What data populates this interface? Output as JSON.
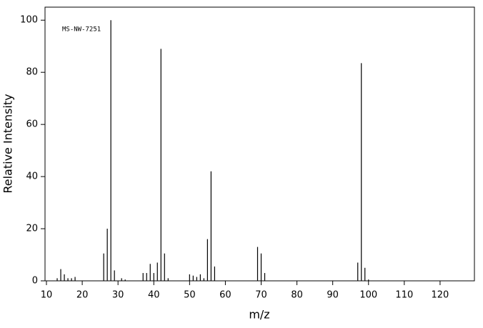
{
  "chart_data": {
    "type": "stick",
    "annotation": "MS-NW-7251",
    "x_label": "m/z",
    "y_label": "Relative Intensity",
    "x": [
      13,
      14,
      15,
      16,
      17,
      18,
      26,
      27,
      28,
      29,
      31,
      32,
      37,
      38,
      39,
      40,
      41,
      42,
      43,
      44,
      50,
      51,
      52,
      53,
      54,
      55,
      56,
      57,
      69,
      70,
      71,
      97,
      98,
      99,
      100
    ],
    "values": [
      1,
      4.5,
      2.5,
      1,
      1,
      1.5,
      10.5,
      20,
      100,
      4,
      1,
      0.5,
      3,
      3,
      6.5,
      3,
      7,
      89,
      10.5,
      1,
      2.5,
      2,
      1.5,
      2.5,
      1,
      16,
      42,
      5.5,
      13,
      10.5,
      3,
      7,
      83.5,
      5,
      0.5
    ],
    "color": "#000000",
    "xlim": [
      9.6,
      129.6
    ],
    "ylim": [
      0,
      105
    ],
    "xticks": [
      10,
      20,
      30,
      40,
      50,
      60,
      70,
      80,
      90,
      100,
      110,
      120
    ],
    "yticks": [
      0,
      20,
      40,
      60,
      80,
      100
    ]
  }
}
